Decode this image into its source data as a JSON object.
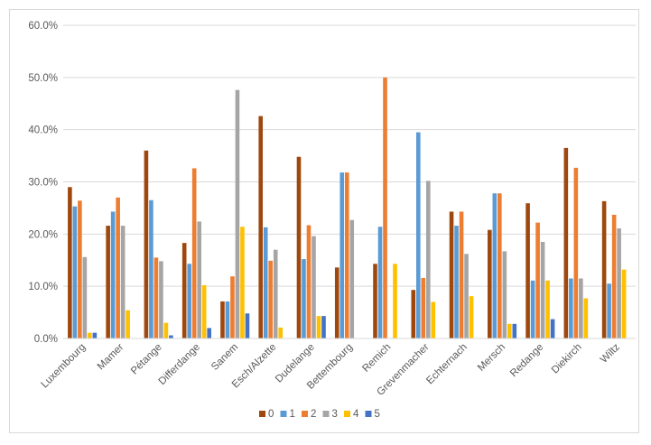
{
  "chart_data": {
    "type": "bar",
    "categories": [
      "Luxembourg",
      "Mamer",
      "Pétange",
      "Differdange",
      "Sanem",
      "Esch/Alzette",
      "Dudelange",
      "Bettembourg",
      "Remich",
      "Grevenmacher",
      "Echternach",
      "Mersch",
      "Redange",
      "Diekirch",
      "Wiltz"
    ],
    "series": [
      {
        "name": "0",
        "color": "#9e480e",
        "values": [
          29.0,
          21.6,
          36.0,
          18.3,
          7.1,
          42.6,
          34.8,
          13.6,
          14.3,
          9.3,
          24.3,
          20.8,
          25.9,
          36.5,
          26.3
        ]
      },
      {
        "name": "1",
        "color": "#5b9bd5",
        "values": [
          25.3,
          24.3,
          26.5,
          14.3,
          7.1,
          21.3,
          15.2,
          31.8,
          21.4,
          39.5,
          21.6,
          27.8,
          11.1,
          11.5,
          10.5
        ]
      },
      {
        "name": "2",
        "color": "#ed7d31",
        "values": [
          26.4,
          27.0,
          15.5,
          32.6,
          11.9,
          14.9,
          21.7,
          31.8,
          50.0,
          11.6,
          24.3,
          27.8,
          22.2,
          32.7,
          23.7
        ]
      },
      {
        "name": "3",
        "color": "#a5a5a5",
        "values": [
          15.6,
          21.6,
          14.8,
          22.4,
          47.6,
          17.0,
          19.6,
          22.7,
          0,
          30.2,
          16.2,
          16.7,
          18.5,
          11.5,
          21.1
        ]
      },
      {
        "name": "4",
        "color": "#ffc000",
        "values": [
          1.1,
          5.4,
          3.0,
          10.2,
          21.4,
          2.1,
          4.3,
          0,
          14.3,
          7.0,
          8.1,
          2.8,
          11.1,
          7.7,
          13.2
        ]
      },
      {
        "name": "5",
        "color": "#4472c4",
        "values": [
          1.1,
          0,
          0.6,
          2.0,
          4.8,
          0,
          4.3,
          0,
          0,
          0,
          0,
          2.8,
          3.7,
          0,
          0
        ]
      }
    ],
    "y_ticks": [
      "0.0%",
      "10.0%",
      "20.0%",
      "30.0%",
      "40.0%",
      "50.0%",
      "60.0%"
    ],
    "ylim": [
      0,
      60
    ],
    "title": "",
    "xlabel": "",
    "ylabel": "",
    "grid": true,
    "legend_position": "bottom"
  }
}
